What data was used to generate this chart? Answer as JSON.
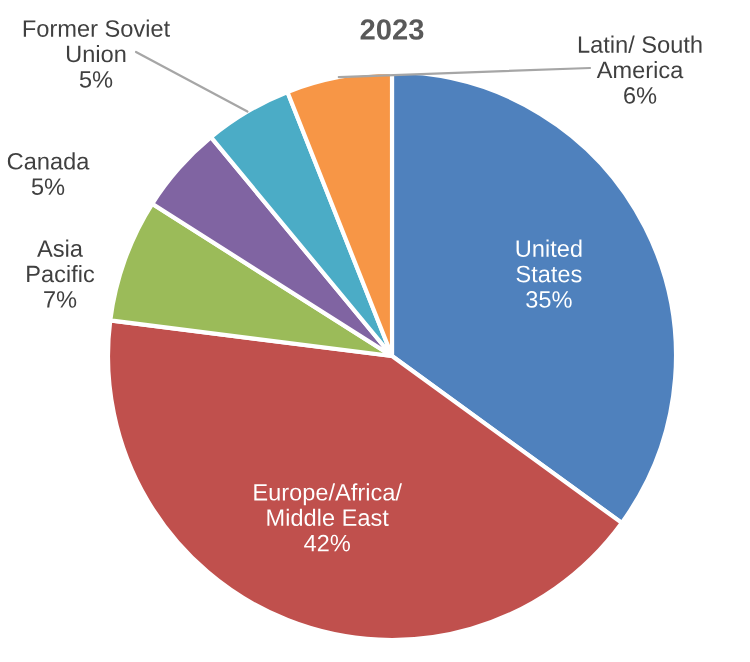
{
  "chart_data": {
    "type": "pie",
    "title": "2023",
    "categories": [
      "United\nStates",
      "Europe/Africa/\nMiddle East",
      "Asia\nPacific",
      "Canada",
      "Former Soviet\nUnion",
      "Latin/ South\nAmerica"
    ],
    "values": [
      35,
      42,
      7,
      5,
      5,
      6
    ],
    "value_labels": [
      "35%",
      "42%",
      "7%",
      "5%",
      "5%",
      "6%"
    ],
    "colors": [
      "#4f81bd",
      "#c0504d",
      "#9bbb59",
      "#8064a2",
      "#4bacc6",
      "#f79646"
    ]
  }
}
